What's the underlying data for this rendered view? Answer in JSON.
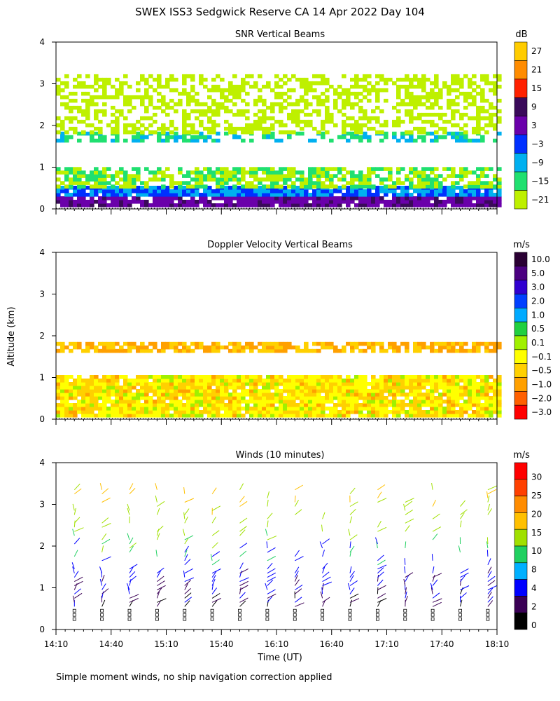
{
  "figure": {
    "title": "SWEX ISS3 Sedgwick Reserve CA  14 Apr 2022 Day 104",
    "ylabel": "Altitude (km)",
    "xlabel": "Time (UT)",
    "footnote": "Simple moment winds, no ship navigation correction applied",
    "x_ticks": [
      "14:10",
      "14:40",
      "15:10",
      "15:40",
      "16:10",
      "16:40",
      "17:10",
      "17:40",
      "18:10"
    ]
  },
  "chart_data": [
    {
      "type": "heatmap",
      "title": "SNR Vertical Beams",
      "unit": "dB",
      "x_range": [
        "14:10",
        "18:10"
      ],
      "ylim": [
        0,
        4
      ],
      "y_ticks": [
        0,
        1,
        2,
        3,
        4
      ],
      "colorbar": {
        "labels": [
          "27",
          "21",
          "15",
          "9",
          "3",
          "−3",
          "−9",
          "−15",
          "−21"
        ],
        "colors": [
          "#ffcc00",
          "#ff8c00",
          "#ff2000",
          "#3a0a5a",
          "#6a00aa",
          "#0030ff",
          "#00b0f0",
          "#20e070",
          "#bef000"
        ]
      },
      "layers": [
        {
          "name": "near-surface strong return",
          "alt_km": [
            0.05,
            0.5
          ],
          "snr_db": [
            3,
            15
          ]
        },
        {
          "name": "boundary layer",
          "alt_km": [
            0.5,
            1.0
          ],
          "snr_db": [
            -15,
            -3
          ]
        },
        {
          "name": "layer near 1.7 km",
          "alt_km": [
            1.6,
            1.8
          ],
          "snr_db": [
            -15,
            -9
          ]
        },
        {
          "name": "upper echoes",
          "alt_km": [
            1.8,
            3.2
          ],
          "snr_db": [
            -21,
            -15
          ]
        }
      ]
    },
    {
      "type": "heatmap",
      "title": "Doppler Velocity Vertical Beams",
      "unit": "m/s",
      "x_range": [
        "14:10",
        "18:10"
      ],
      "ylim": [
        0,
        4
      ],
      "y_ticks": [
        0,
        1,
        2,
        3,
        4
      ],
      "colorbar": {
        "labels": [
          "10.0",
          "5.0",
          "3.0",
          "2.0",
          "1.0",
          "0.5",
          "0.1",
          "−0.1",
          "−0.5",
          "−1.0",
          "−2.0",
          "−3.0"
        ],
        "colors": [
          "#2a0033",
          "#4b0080",
          "#3000d0",
          "#0040ff",
          "#00aaff",
          "#20d040",
          "#a0f000",
          "#ffff00",
          "#ffd000",
          "#ffa000",
          "#ff6000",
          "#ff0000"
        ]
      },
      "layers": [
        {
          "name": "boundary layer",
          "alt_km": [
            0.05,
            1.0
          ],
          "velocity_ms": [
            -0.5,
            -0.1
          ]
        },
        {
          "name": "layer near 1.7 km",
          "alt_km": [
            1.6,
            1.8
          ],
          "velocity_ms": [
            -1.0,
            -0.5
          ]
        }
      ]
    },
    {
      "type": "wind_barbs",
      "title": "Winds (10 minutes)",
      "unit": "m/s",
      "x_range": [
        "14:10",
        "18:10"
      ],
      "ylim": [
        0,
        4
      ],
      "y_ticks": [
        0,
        1,
        2,
        3,
        4
      ],
      "colorbar": {
        "labels": [
          "30",
          "25",
          "20",
          "15",
          "10",
          "8",
          "4",
          "2",
          "0"
        ],
        "colors": [
          "#ff0000",
          "#ff4000",
          "#ff8c00",
          "#ffc000",
          "#a0e000",
          "#20d060",
          "#00b0ff",
          "#0000ff",
          "#3a0055",
          "#000000"
        ]
      },
      "profiles_min_after_start": [
        10,
        25,
        40,
        55,
        70,
        85,
        100,
        115,
        130,
        145,
        160,
        175,
        190,
        205,
        220,
        235
      ],
      "speed_ms_by_alt": [
        {
          "alt_km": 0.3,
          "speed_ms": 2
        },
        {
          "alt_km": 1.0,
          "speed_ms": 4
        },
        {
          "alt_km": 1.8,
          "speed_ms": 8
        },
        {
          "alt_km": 2.4,
          "speed_ms": 12
        },
        {
          "alt_km": 3.2,
          "speed_ms": 15
        }
      ]
    }
  ]
}
